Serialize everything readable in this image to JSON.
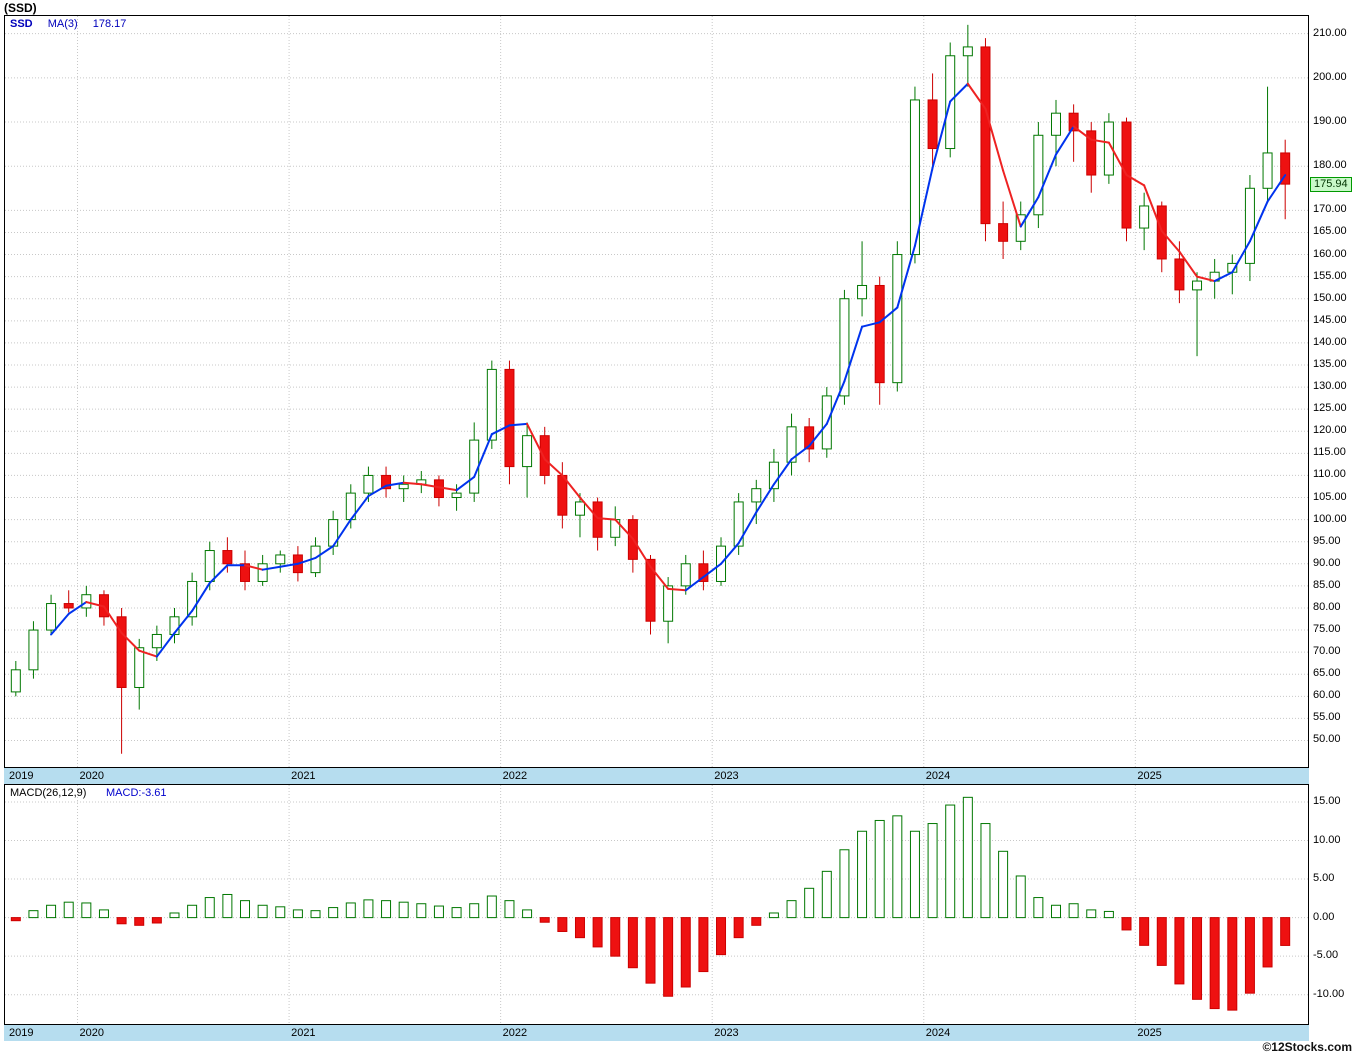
{
  "title": "(SSD)",
  "watermark": "©12Stocks.com",
  "price_panel": {
    "legend": {
      "symbol": "SSD",
      "ma_label": "MA(3)",
      "ma_value": "178.17"
    },
    "last_price": "175.94",
    "ylim": [
      44,
      214
    ],
    "axis_labels": [
      210,
      200,
      190,
      180,
      170,
      165,
      160,
      155,
      150,
      145,
      140,
      135,
      130,
      125,
      120,
      115,
      110,
      105,
      100,
      95,
      90,
      85,
      80,
      75,
      70,
      65,
      60,
      55,
      50
    ]
  },
  "macd_panel": {
    "legend_params": "MACD(26,12,9)",
    "legend_value": "MACD:-3.61",
    "ylim": [
      -13.8,
      17.2
    ],
    "axis_labels": [
      15,
      10,
      5,
      0,
      -5,
      -10
    ]
  },
  "x_axis": {
    "years": [
      "2019",
      "2020",
      "2021",
      "2022",
      "2023",
      "2024",
      "2025"
    ],
    "year_start_indices": [
      0,
      4,
      16,
      28,
      40,
      52,
      64
    ]
  },
  "colors": {
    "up_stroke": "#007700",
    "up_fill": "#ffffff",
    "down_stroke": "#cc0000",
    "down_fill": "#ee1111",
    "ma_up": "#0033ee",
    "ma_down": "#ee2222",
    "grid": "#c8c8c8",
    "axis_strip": "#b6ddef",
    "legend_blue": "#0000cc",
    "last_tag_bg": "#c9f8c9"
  },
  "chart_data": [
    {
      "type": "candlestick",
      "name": "SSD monthly OHLC",
      "title": "(SSD)",
      "ylabel": "Price",
      "ylim": [
        44,
        214
      ],
      "last_close": 175.94,
      "overlays": [
        {
          "name": "MA(3)",
          "type": "line",
          "window": 3,
          "last_value": 178.17
        }
      ],
      "columns": [
        "month",
        "open",
        "high",
        "low",
        "close"
      ],
      "rows": [
        [
          "2019-09",
          61,
          68,
          60,
          66
        ],
        [
          "2019-10",
          66,
          77,
          64,
          75
        ],
        [
          "2019-11",
          75,
          83,
          74,
          81
        ],
        [
          "2019-12",
          81,
          84,
          79,
          80
        ],
        [
          "2020-01",
          80,
          85,
          78,
          83
        ],
        [
          "2020-02",
          83,
          84,
          76,
          78
        ],
        [
          "2020-03",
          78,
          80,
          47,
          62
        ],
        [
          "2020-04",
          62,
          73,
          57,
          71
        ],
        [
          "2020-05",
          71,
          76,
          68,
          74
        ],
        [
          "2020-06",
          74,
          80,
          72,
          78
        ],
        [
          "2020-07",
          78,
          88,
          76,
          86
        ],
        [
          "2020-08",
          86,
          95,
          84,
          93
        ],
        [
          "2020-09",
          93,
          96,
          88,
          90
        ],
        [
          "2020-10",
          90,
          93,
          84,
          86
        ],
        [
          "2020-11",
          86,
          92,
          85,
          90
        ],
        [
          "2020-12",
          90,
          93,
          88,
          92
        ],
        [
          "2021-01",
          92,
          94,
          86,
          88
        ],
        [
          "2021-02",
          88,
          96,
          87,
          94
        ],
        [
          "2021-03",
          94,
          102,
          92,
          100
        ],
        [
          "2021-04",
          100,
          108,
          98,
          106
        ],
        [
          "2021-05",
          106,
          112,
          104,
          110
        ],
        [
          "2021-06",
          110,
          112,
          105,
          107
        ],
        [
          "2021-07",
          107,
          110,
          104,
          108
        ],
        [
          "2021-08",
          108,
          111,
          106,
          109
        ],
        [
          "2021-09",
          109,
          110,
          103,
          105
        ],
        [
          "2021-10",
          105,
          108,
          102,
          106
        ],
        [
          "2021-11",
          106,
          122,
          104,
          118
        ],
        [
          "2021-12",
          118,
          136,
          116,
          134
        ],
        [
          "2022-01",
          134,
          136,
          108,
          112
        ],
        [
          "2022-02",
          112,
          122,
          105,
          119
        ],
        [
          "2022-03",
          119,
          121,
          108,
          110
        ],
        [
          "2022-04",
          110,
          113,
          98,
          101
        ],
        [
          "2022-05",
          101,
          106,
          96,
          104
        ],
        [
          "2022-06",
          104,
          105,
          93,
          96
        ],
        [
          "2022-07",
          96,
          103,
          94,
          100
        ],
        [
          "2022-08",
          100,
          101,
          88,
          91
        ],
        [
          "2022-09",
          91,
          92,
          74,
          77
        ],
        [
          "2022-10",
          77,
          87,
          72,
          85
        ],
        [
          "2022-11",
          85,
          92,
          83,
          90
        ],
        [
          "2022-12",
          90,
          93,
          84,
          86
        ],
        [
          "2023-01",
          86,
          96,
          85,
          94
        ],
        [
          "2023-02",
          94,
          106,
          92,
          104
        ],
        [
          "2023-03",
          104,
          109,
          99,
          107
        ],
        [
          "2023-04",
          107,
          116,
          104,
          113
        ],
        [
          "2023-05",
          113,
          124,
          110,
          121
        ],
        [
          "2023-06",
          121,
          123,
          113,
          116
        ],
        [
          "2023-07",
          116,
          130,
          114,
          128
        ],
        [
          "2023-08",
          128,
          152,
          126,
          150
        ],
        [
          "2023-09",
          150,
          163,
          146,
          153
        ],
        [
          "2023-10",
          153,
          155,
          126,
          131
        ],
        [
          "2023-11",
          131,
          163,
          129,
          160
        ],
        [
          "2023-12",
          160,
          198,
          158,
          195
        ],
        [
          "2024-01",
          195,
          201,
          179,
          184
        ],
        [
          "2024-02",
          184,
          208,
          182,
          205
        ],
        [
          "2024-03",
          205,
          212,
          198,
          207
        ],
        [
          "2024-04",
          207,
          209,
          163,
          167
        ],
        [
          "2024-05",
          167,
          172,
          159,
          163
        ],
        [
          "2024-06",
          163,
          172,
          161,
          169
        ],
        [
          "2024-07",
          169,
          190,
          166,
          187
        ],
        [
          "2024-08",
          187,
          195,
          180,
          192
        ],
        [
          "2024-09",
          192,
          194,
          181,
          188
        ],
        [
          "2024-10",
          188,
          190,
          174,
          178
        ],
        [
          "2024-11",
          178,
          192,
          176,
          190
        ],
        [
          "2024-12",
          190,
          191,
          163,
          166
        ],
        [
          "2025-01",
          166,
          174,
          161,
          171
        ],
        [
          "2025-02",
          171,
          172,
          156,
          159
        ],
        [
          "2025-03",
          159,
          163,
          149,
          152
        ],
        [
          "2025-04",
          152,
          156,
          137,
          154
        ],
        [
          "2025-05",
          154,
          159,
          150,
          156
        ],
        [
          "2025-06",
          156,
          160,
          151,
          158
        ],
        [
          "2025-07",
          158,
          178,
          154,
          175
        ],
        [
          "2025-08",
          175,
          198,
          172,
          183
        ],
        [
          "2025-09",
          183,
          186,
          168,
          175.94
        ]
      ]
    },
    {
      "type": "bar",
      "name": "MACD(26,12,9) histogram",
      "ylim": [
        -13.8,
        17.2
      ],
      "last_value": -3.61,
      "values": [
        -0.4,
        0.9,
        1.6,
        2.0,
        1.9,
        1.0,
        -0.8,
        -1.0,
        -0.7,
        0.6,
        1.6,
        2.6,
        3.0,
        2.2,
        1.6,
        1.4,
        1.0,
        0.9,
        1.3,
        1.9,
        2.3,
        2.2,
        2.0,
        1.8,
        1.5,
        1.3,
        1.8,
        2.8,
        2.2,
        1.0,
        -0.6,
        -1.8,
        -2.6,
        -3.8,
        -5.0,
        -6.5,
        -8.5,
        -10.2,
        -9.0,
        -7.0,
        -4.8,
        -2.6,
        -1.0,
        0.6,
        2.2,
        3.8,
        6.0,
        8.8,
        11.2,
        12.6,
        13.2,
        11.2,
        12.2,
        14.6,
        15.6,
        12.2,
        8.6,
        5.4,
        2.6,
        1.6,
        1.8,
        1.0,
        0.8,
        -1.6,
        -3.6,
        -6.2,
        -8.6,
        -10.6,
        -11.8,
        -12.0,
        -9.8,
        -6.4,
        -3.61
      ]
    }
  ]
}
